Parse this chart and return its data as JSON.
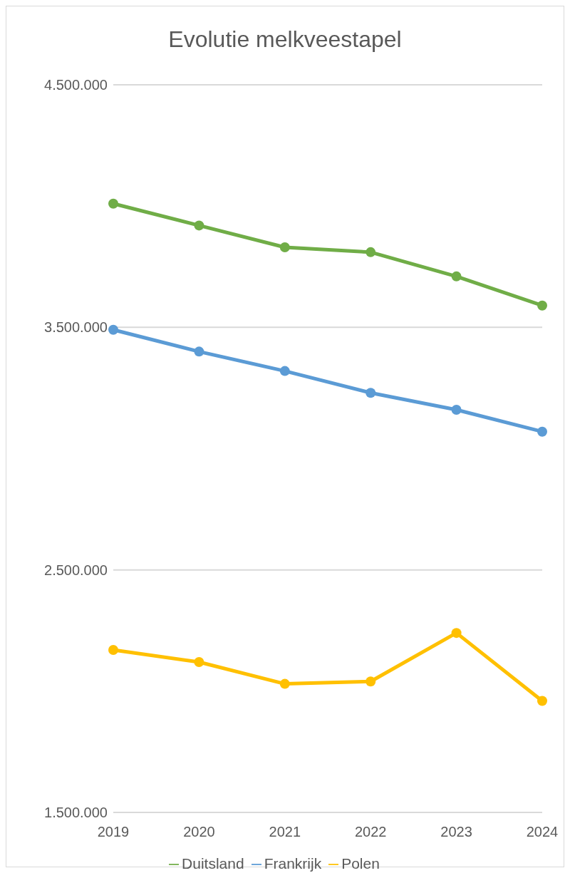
{
  "chart_data": {
    "type": "line",
    "title": "Evolutie melkveestapel",
    "categories": [
      "2019",
      "2020",
      "2021",
      "2022",
      "2023",
      "2024"
    ],
    "series": [
      {
        "name": "Duitsland",
        "color": "#70ad47",
        "values": [
          4010000,
          3920000,
          3830000,
          3810000,
          3710000,
          3590000
        ]
      },
      {
        "name": "Frankrijk",
        "color": "#5b9bd5",
        "values": [
          3490000,
          3400000,
          3320000,
          3230000,
          3160000,
          3070000
        ]
      },
      {
        "name": "Polen",
        "color": "#ffc000",
        "values": [
          2170000,
          2120000,
          2030000,
          2040000,
          2240000,
          1960000
        ]
      }
    ],
    "ylim": [
      1500000,
      4500000
    ],
    "yticks": [
      {
        "value": 1500000,
        "label": "1.500.000"
      },
      {
        "value": 2500000,
        "label": "2.500.000"
      },
      {
        "value": 3500000,
        "label": "3.500.000"
      },
      {
        "value": 4500000,
        "label": "4.500.000"
      }
    ],
    "grid": "y",
    "legend": "bottom",
    "marker": "circle",
    "line_style": "solid"
  }
}
